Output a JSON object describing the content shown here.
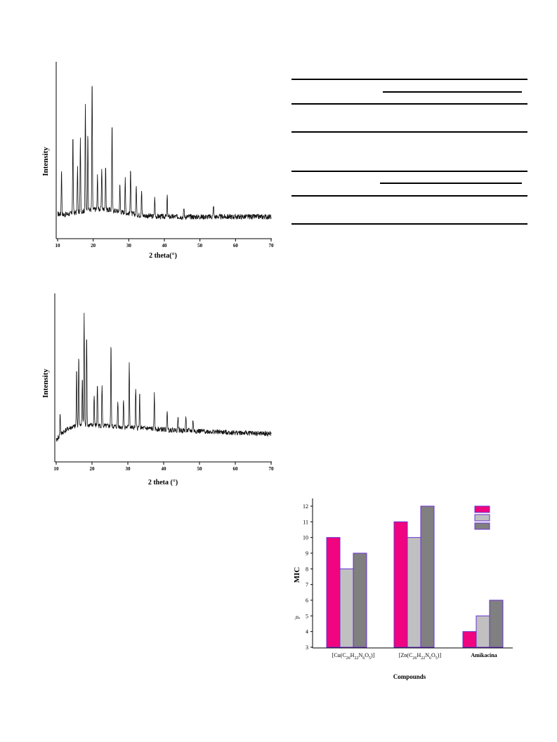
{
  "xrd_top": {
    "ylabel": "Intensity",
    "xlabel": "2 theta(°)",
    "x_ticks": [
      "10",
      "20",
      "30",
      "40",
      "50",
      "60",
      "70"
    ]
  },
  "xrd_bottom": {
    "ylabel": "Intensity",
    "xlabel": "2 theta (°)",
    "x_ticks": [
      "10",
      "20",
      "30",
      "40",
      "50",
      "60",
      "70"
    ]
  },
  "chart_data": [
    {
      "type": "line",
      "xlabel": "2 theta(°)",
      "ylabel": "Intensity",
      "xlim": [
        10,
        70
      ],
      "peaks": [
        {
          "x": 11.1,
          "h": 0.3
        },
        {
          "x": 14.3,
          "h": 0.52
        },
        {
          "x": 15.6,
          "h": 0.3
        },
        {
          "x": 16.4,
          "h": 0.48
        },
        {
          "x": 17.8,
          "h": 0.7
        },
        {
          "x": 18.5,
          "h": 0.52
        },
        {
          "x": 19.7,
          "h": 0.88
        },
        {
          "x": 21.2,
          "h": 0.22
        },
        {
          "x": 22.4,
          "h": 0.28
        },
        {
          "x": 23.5,
          "h": 0.3
        },
        {
          "x": 25.3,
          "h": 0.58
        },
        {
          "x": 27.5,
          "h": 0.18
        },
        {
          "x": 29.0,
          "h": 0.22
        },
        {
          "x": 30.5,
          "h": 0.32
        },
        {
          "x": 32.1,
          "h": 0.2
        },
        {
          "x": 33.6,
          "h": 0.17
        },
        {
          "x": 37.3,
          "h": 0.13
        },
        {
          "x": 40.8,
          "h": 0.14
        },
        {
          "x": 45.5,
          "h": 0.06
        },
        {
          "x": 53.8,
          "h": 0.08
        }
      ]
    },
    {
      "type": "line",
      "xlabel": "2 theta (°)",
      "ylabel": "Intensity",
      "xlim": [
        10,
        70
      ],
      "peaks": [
        {
          "x": 11.1,
          "h": 0.15
        },
        {
          "x": 15.7,
          "h": 0.4
        },
        {
          "x": 16.3,
          "h": 0.5
        },
        {
          "x": 17.3,
          "h": 0.35
        },
        {
          "x": 17.8,
          "h": 0.78
        },
        {
          "x": 18.5,
          "h": 0.66
        },
        {
          "x": 20.6,
          "h": 0.22
        },
        {
          "x": 21.5,
          "h": 0.3
        },
        {
          "x": 22.8,
          "h": 0.28
        },
        {
          "x": 25.3,
          "h": 0.58
        },
        {
          "x": 27.2,
          "h": 0.18
        },
        {
          "x": 28.8,
          "h": 0.2
        },
        {
          "x": 30.4,
          "h": 0.46
        },
        {
          "x": 32.2,
          "h": 0.28
        },
        {
          "x": 33.3,
          "h": 0.24
        },
        {
          "x": 37.4,
          "h": 0.24
        },
        {
          "x": 41.0,
          "h": 0.14
        },
        {
          "x": 44.0,
          "h": 0.1
        },
        {
          "x": 46.2,
          "h": 0.1
        },
        {
          "x": 48.2,
          "h": 0.08
        }
      ]
    },
    {
      "type": "bar",
      "ylabel": "MIC",
      "xlabel": "Compounds",
      "ylim": [
        3,
        12
      ],
      "y_ticks": [
        3,
        4,
        5,
        6,
        7,
        8,
        9,
        10,
        11,
        12
      ],
      "categories": [
        {
          "base": "[Cu(C",
          "s1": "26",
          "m1": "H",
          "s2": "22",
          "m2": "N",
          "s3": "6",
          "m3": "O",
          "s4": "5",
          "end": ")]"
        },
        {
          "base": "[Zn(C",
          "s1": "26",
          "m1": "H",
          "s2": "22",
          "m2": "N",
          "s3": "6",
          "m3": "O",
          "s4": "5",
          "end": ")]"
        },
        {
          "base": "Amikacina"
        }
      ],
      "series": [
        {
          "values": [
            10,
            11,
            4
          ],
          "color": "#f0047f"
        },
        {
          "values": [
            8,
            10,
            5
          ],
          "color": "#c0c0c0"
        },
        {
          "values": [
            9,
            12,
            6
          ],
          "color": "#808080"
        }
      ],
      "bar_edge": "#6a2fd0",
      "stray_mark": "'p"
    }
  ]
}
